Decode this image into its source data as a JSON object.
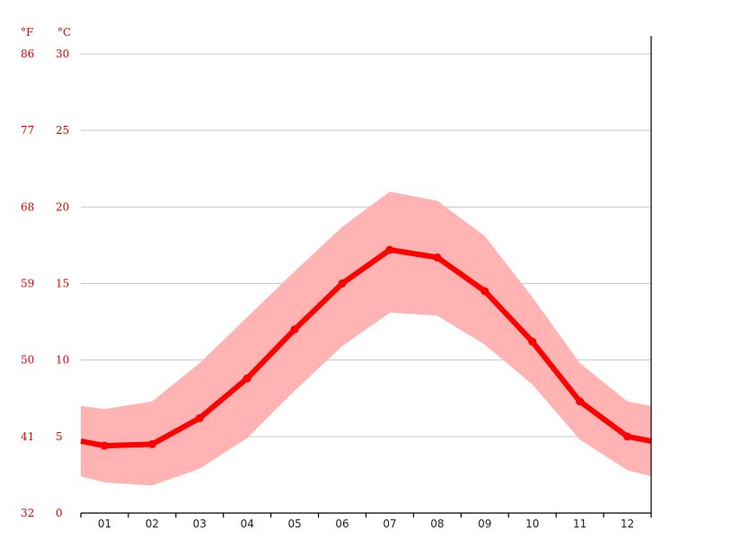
{
  "chart_data": {
    "type": "line",
    "unit_f": "°F",
    "unit_c": "°C",
    "categories": [
      "01",
      "02",
      "03",
      "04",
      "05",
      "06",
      "07",
      "08",
      "09",
      "10",
      "11",
      "12"
    ],
    "y_ticks_c": [
      "0",
      "5",
      "10",
      "15",
      "20",
      "25",
      "30"
    ],
    "y_ticks_f": [
      "32",
      "41",
      "50",
      "59",
      "68",
      "77",
      "86"
    ],
    "ylim": [
      0,
      30
    ],
    "grid": true,
    "series": [
      {
        "role": "mean",
        "color": "#ff0000",
        "values": [
          4.4,
          4.5,
          6.2,
          8.8,
          12.0,
          15.0,
          17.2,
          16.7,
          14.5,
          11.2,
          7.3,
          5.0
        ]
      },
      {
        "role": "max",
        "color": "#ffb3b3",
        "values": [
          6.8,
          7.3,
          9.8,
          12.8,
          15.8,
          18.7,
          21.0,
          20.4,
          18.1,
          14.1,
          9.8,
          7.3
        ]
      },
      {
        "role": "min",
        "color": "#ffb3b3",
        "values": [
          2.0,
          1.8,
          2.9,
          4.9,
          8.0,
          10.9,
          13.1,
          12.9,
          11.0,
          8.4,
          4.8,
          2.8
        ]
      }
    ],
    "band_color": "#ffb3b3",
    "line_color": "#ff0000",
    "edge_start": {
      "mean": 4.7,
      "max": 7.0,
      "min": 2.4
    },
    "edge_end": {
      "mean": 4.7,
      "max": 7.0,
      "min": 2.4
    }
  }
}
